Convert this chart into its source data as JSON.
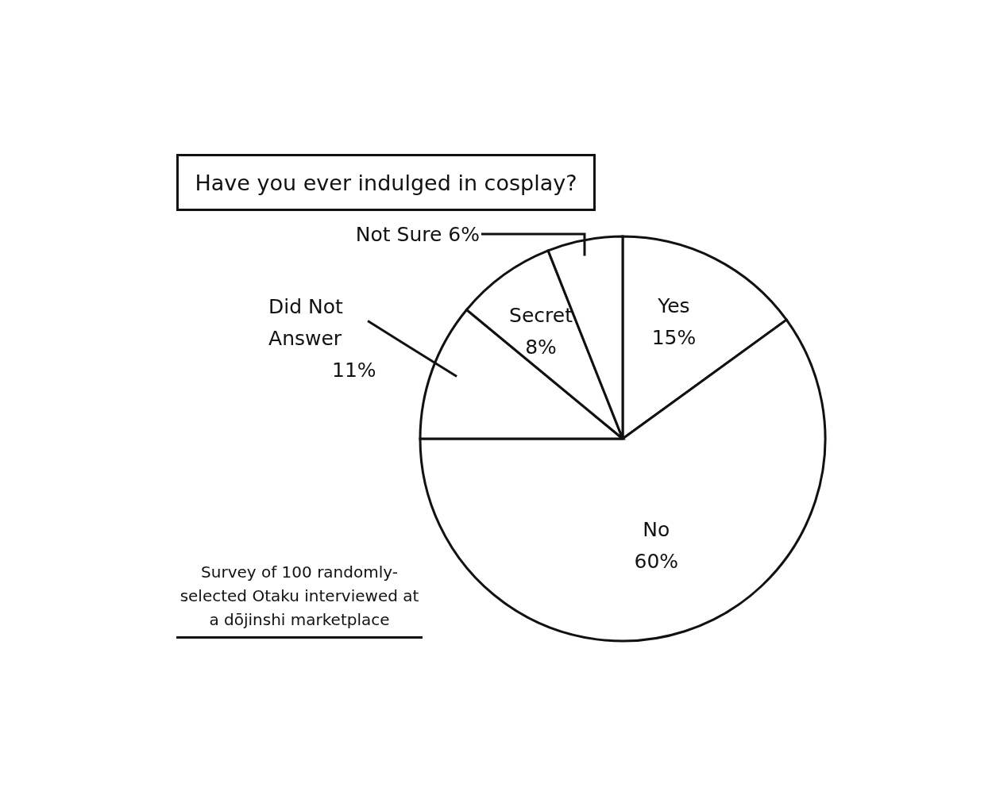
{
  "chart_data": {
    "type": "pie",
    "title": "Have you ever indulged in cosplay?",
    "categories": [
      "Yes",
      "No",
      "Did Not Answer",
      "Secret",
      "Not Sure"
    ],
    "values": [
      15,
      60,
      11,
      8,
      6
    ],
    "value_labels": [
      "15%",
      "60%",
      "11%",
      "8%",
      "6%"
    ],
    "colors": [
      "#ffffff",
      "#ffffff",
      "#ffffff",
      "#ffffff",
      "#ffffff"
    ],
    "annotations": [
      "Survey of 100 randomly-selected Otaku interviewed at a dōjinshi marketplace"
    ]
  }
}
